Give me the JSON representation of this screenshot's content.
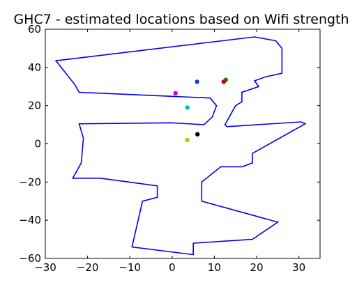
{
  "chart_data": {
    "type": "scatter",
    "title": "GHC7 - estimated locations based on Wifi strength",
    "xlabel": "",
    "ylabel": "",
    "xlim": [
      -30,
      35
    ],
    "ylim": [
      -60,
      60
    ],
    "x_ticks": [
      -30,
      -20,
      -10,
      0,
      10,
      20,
      30
    ],
    "y_ticks": [
      -60,
      -40,
      -20,
      0,
      20,
      40,
      60
    ],
    "grid": false,
    "legend": "none",
    "floorplan_color": "#0000ee",
    "points": [
      {
        "x": 0.8,
        "y": 26.5,
        "color": "#cc00cc"
      },
      {
        "x": 3.6,
        "y": 19.0,
        "color": "#00bfbf"
      },
      {
        "x": 5.9,
        "y": 32.5,
        "color": "#1f3fcf"
      },
      {
        "x": 12.7,
        "y": 33.5,
        "color": "#008800"
      },
      {
        "x": 12.2,
        "y": 32.5,
        "color": "#cc0000"
      },
      {
        "x": 6.0,
        "y": 5.0,
        "color": "#000000"
      },
      {
        "x": 3.6,
        "y": 2.0,
        "color": "#bfbf00"
      }
    ],
    "floorplan_outline": [
      [
        [
          -27.5,
          43.5
        ],
        [
          19.5,
          56
        ],
        [
          24.5,
          54
        ],
        [
          26.0,
          50
        ],
        [
          26.0,
          37
        ],
        [
          22.0,
          35
        ],
        [
          19.5,
          33
        ],
        [
          20.5,
          30
        ],
        [
          16.5,
          27
        ],
        [
          16.5,
          22
        ],
        [
          15.0,
          20
        ],
        [
          12.5,
          10
        ],
        [
          13.0,
          9
        ],
        [
          30.5,
          11.5
        ],
        [
          31.5,
          10.5
        ],
        [
          19.0,
          -5
        ],
        [
          19.0,
          -10
        ],
        [
          16.5,
          -12
        ],
        [
          11.5,
          -12
        ],
        [
          7.0,
          -20
        ],
        [
          7.0,
          -30
        ],
        [
          25.0,
          -41
        ],
        [
          19.0,
          -50
        ],
        [
          5.0,
          -52
        ],
        [
          5.0,
          -58
        ],
        [
          -9.5,
          -54
        ],
        [
          -7.0,
          -30
        ],
        [
          -3.5,
          -28
        ],
        [
          -3.5,
          -22
        ],
        [
          -17.0,
          -18
        ],
        [
          -23.5,
          -18
        ],
        [
          -21.5,
          -10
        ],
        [
          -21.0,
          3
        ],
        [
          -22.0,
          10.5
        ],
        [
          0.0,
          11.0
        ],
        [
          7.5,
          10.0
        ],
        [
          9.5,
          14
        ],
        [
          10.5,
          20
        ],
        [
          9.0,
          24
        ],
        [
          -22.0,
          27
        ],
        [
          -23.0,
          31
        ],
        [
          -27.5,
          43.5
        ]
      ]
    ]
  }
}
